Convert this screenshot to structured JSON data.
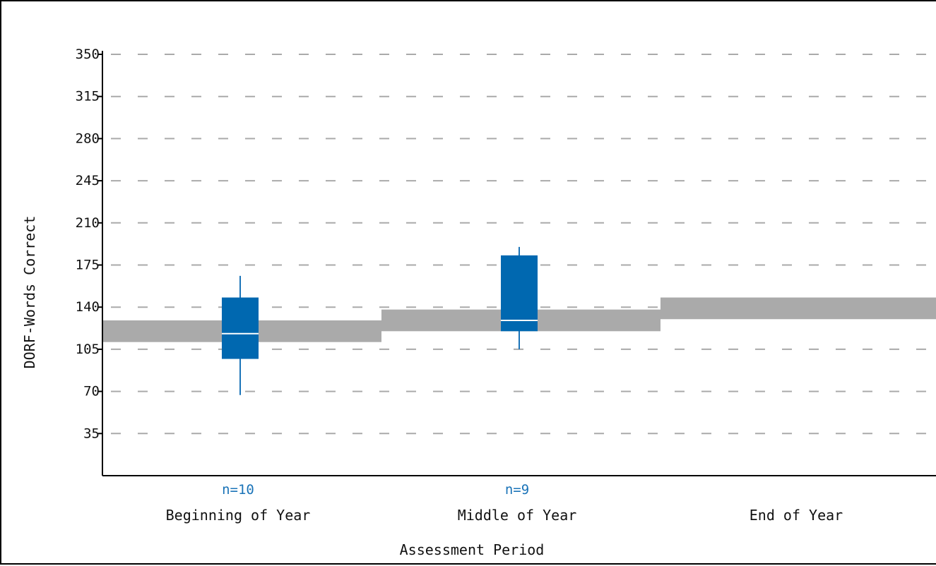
{
  "chart_data": {
    "type": "boxplot",
    "xlabel": "Assessment Period",
    "ylabel": "DORF-Words Correct",
    "ylim": [
      0,
      350
    ],
    "yticks": [
      35,
      70,
      105,
      140,
      175,
      210,
      245,
      280,
      315,
      350
    ],
    "grid": true,
    "categories": [
      "Beginning of Year",
      "Middle of Year",
      "End of Year"
    ],
    "n_labels": [
      "n=10",
      "n=9",
      ""
    ],
    "boxes": [
      {
        "category": "Beginning of Year",
        "min": 67,
        "q1": 97,
        "median": 118,
        "q3": 148,
        "max": 166
      },
      {
        "category": "Middle of Year",
        "min": 105,
        "q1": 120,
        "median": 129,
        "q3": 183,
        "max": 190
      },
      null
    ],
    "benchmark_bands": [
      {
        "category": "Beginning of Year",
        "low": 111,
        "high": 129
      },
      {
        "category": "Middle of Year",
        "low": 120,
        "high": 138
      },
      {
        "category": "End of Year",
        "low": 130,
        "high": 148
      }
    ],
    "colors": {
      "box": "#0068b0",
      "whisker": "#1a73b8",
      "median": "#ffffff",
      "band": "#aaaaaa",
      "grid": "#aaaaaa",
      "n_label": "#1a73b8"
    }
  }
}
